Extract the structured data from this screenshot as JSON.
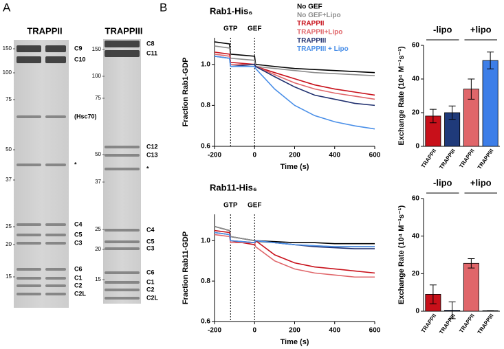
{
  "panel_labels": [
    "A",
    "B"
  ],
  "gels": [
    {
      "title": "TRAPPII",
      "mw": [
        "150",
        "100",
        "75",
        "50",
        "37",
        "25",
        "20",
        "15"
      ],
      "bands": [
        "C9",
        "C10",
        "(Hsc70)",
        "*",
        "C4",
        "C5",
        "C3",
        "C6",
        "C1",
        "C2",
        "C2L"
      ]
    },
    {
      "title": "TRAPPIII",
      "mw": [
        "150",
        "100",
        "75",
        "50",
        "37",
        "25",
        "20",
        "15"
      ],
      "bands": [
        "C8",
        "C11",
        "C12",
        "C13",
        "*",
        "C4",
        "C5",
        "C3",
        "C6",
        "C1",
        "C2",
        "C2L"
      ]
    }
  ],
  "chart_data": [
    {
      "type": "line",
      "title": "Rab1-His₆",
      "ylabel": "Fraction Rab1-GDP",
      "xlabel": "Time (s)",
      "x": [
        -200,
        -125,
        -120,
        0,
        5,
        100,
        200,
        300,
        400,
        500,
        600
      ],
      "xlim": [
        -200,
        600
      ],
      "ylim": [
        0.6,
        1.13
      ],
      "xticks": [
        -200,
        0,
        200,
        400,
        600
      ],
      "yticks": [
        0.6,
        0.8,
        {
          "value": 1.0,
          "label": "1.0"
        }
      ],
      "markers": [
        {
          "label": "GTP",
          "x": -120
        },
        {
          "label": "GEF",
          "x": 0
        }
      ],
      "series": [
        {
          "name": "No GEF",
          "color": "#000000",
          "values": [
            1.11,
            1.1,
            1.05,
            1.04,
            1.0,
            0.99,
            0.98,
            0.975,
            0.97,
            0.965,
            0.96
          ]
        },
        {
          "name": "No GEF+Lipo",
          "color": "#8c8c8c",
          "values": [
            1.09,
            1.08,
            1.03,
            1.02,
            0.99,
            0.98,
            0.97,
            0.96,
            0.955,
            0.95,
            0.945
          ]
        },
        {
          "name": "TRAPPII",
          "color": "#c8101a",
          "values": [
            1.06,
            1.05,
            1.01,
            1.0,
            0.99,
            0.96,
            0.93,
            0.9,
            0.88,
            0.865,
            0.85
          ]
        },
        {
          "name": "TRAPPII+Lipo",
          "color": "#e0666a",
          "values": [
            1.05,
            1.04,
            1.0,
            1.0,
            0.99,
            0.95,
            0.91,
            0.88,
            0.86,
            0.845,
            0.83
          ]
        },
        {
          "name": "TRAPPIII",
          "color": "#1f2f6e",
          "values": [
            1.04,
            1.03,
            0.99,
            1.0,
            0.99,
            0.94,
            0.89,
            0.85,
            0.83,
            0.81,
            0.8
          ]
        },
        {
          "name": "TRAPPIII + Lipo",
          "color": "#4a8fe8",
          "values": [
            1.04,
            1.03,
            0.99,
            0.99,
            0.98,
            0.88,
            0.8,
            0.75,
            0.72,
            0.7,
            0.685
          ]
        }
      ]
    },
    {
      "type": "line",
      "title": "Rab11-His₆",
      "ylabel": "Fraction Rab11-GDP",
      "xlabel": "Time (s)",
      "x": [
        -200,
        -125,
        -120,
        0,
        5,
        100,
        200,
        300,
        400,
        500,
        600
      ],
      "xlim": [
        -200,
        600
      ],
      "ylim": [
        0.6,
        1.13
      ],
      "xticks": [
        -200,
        0,
        200,
        400,
        600
      ],
      "yticks": [
        0.6,
        0.8,
        {
          "value": 1.0,
          "label": "1.0"
        }
      ],
      "markers": [
        {
          "label": "GTP",
          "x": -120
        },
        {
          "label": "GEF",
          "x": 0
        }
      ],
      "series": [
        {
          "color": "#000000",
          "values": [
            1.07,
            1.05,
            1.02,
            1.0,
            1.0,
            0.995,
            0.99,
            0.99,
            0.985,
            0.985,
            0.985
          ]
        },
        {
          "color": "#8c8c8c",
          "values": [
            1.07,
            1.05,
            1.02,
            1.0,
            0.995,
            0.99,
            0.98,
            0.975,
            0.97,
            0.97,
            0.97
          ]
        },
        {
          "color": "#c8101a",
          "values": [
            1.05,
            1.04,
            1.0,
            0.98,
            1.0,
            0.93,
            0.89,
            0.87,
            0.86,
            0.85,
            0.84
          ]
        },
        {
          "color": "#e0666a",
          "values": [
            1.03,
            1.02,
            0.99,
            0.99,
            0.97,
            0.9,
            0.86,
            0.84,
            0.83,
            0.82,
            0.82
          ]
        },
        {
          "color": "#1f2f6e",
          "values": [
            1.04,
            1.03,
            1.0,
            0.99,
            1.0,
            0.99,
            0.98,
            0.97,
            0.965,
            0.96,
            0.96
          ]
        },
        {
          "color": "#4a8fe8",
          "values": [
            1.04,
            1.03,
            1.0,
            0.99,
            1.0,
            0.99,
            0.98,
            0.975,
            0.97,
            0.97,
            0.97
          ]
        }
      ]
    },
    {
      "type": "bar",
      "ylabel": "Exchange Rate (10⁴ M⁻¹s⁻¹)",
      "groups": [
        "-lipo",
        "+lipo"
      ],
      "categories": [
        "TRAPPII",
        "TRAPPIII",
        "TRAPPII",
        "TRAPPIII"
      ],
      "values": [
        18,
        20,
        34,
        51
      ],
      "errors": [
        4,
        4,
        6,
        5
      ],
      "colors": [
        "#c8101a",
        "#1f3a7a",
        "#e0666a",
        "#3d7ee8"
      ],
      "ylim": [
        0,
        60
      ],
      "yticks": [
        0,
        20,
        40,
        60
      ]
    },
    {
      "type": "bar",
      "ylabel": "Exchange Rate (10⁴ M⁻¹s⁻¹)",
      "groups": [
        "-lipo",
        "+lipo"
      ],
      "categories": [
        "TRAPPII",
        "TRAPPIII",
        "TRAPPII",
        "TRAPPIII"
      ],
      "values": [
        9,
        0.5,
        25.5,
        0.3
      ],
      "errors": [
        5,
        4.5,
        2.5,
        0
      ],
      "colors": [
        "#c8101a",
        "#1f3a7a",
        "#e0666a",
        "#3d7ee8"
      ],
      "ylim": [
        0,
        60
      ],
      "yticks": [
        0,
        20,
        40,
        60
      ]
    }
  ]
}
